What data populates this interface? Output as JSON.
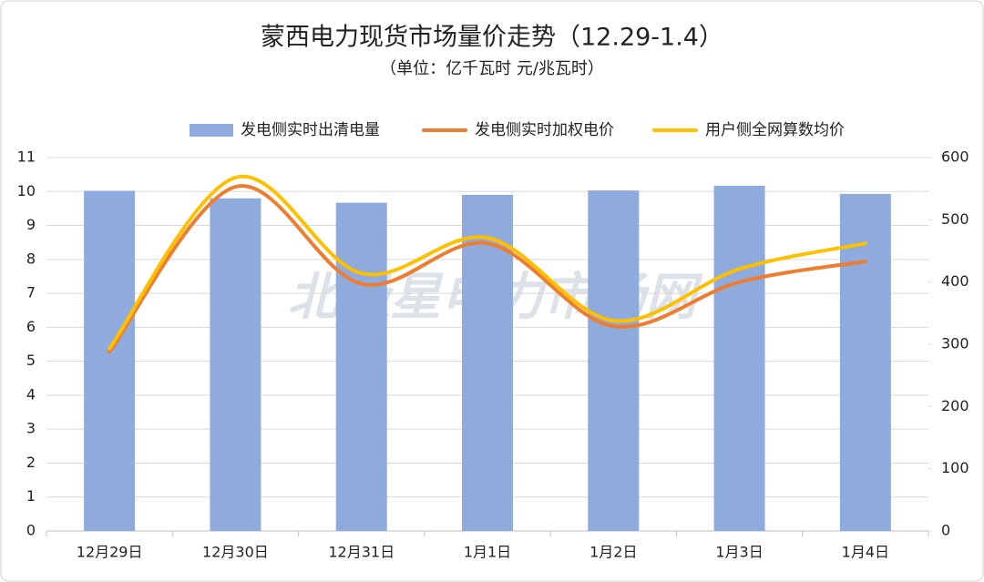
{
  "chart_data": {
    "type": "bar-line",
    "title": "蒙西电力现货市场量价走势（12.29-1.4）",
    "subtitle": "（单位：亿千瓦时 元/兆瓦时）",
    "watermark": "北极星电力市场网",
    "categories": [
      "12月29日",
      "12月30日",
      "12月31日",
      "1月1日",
      "1月2日",
      "1月3日",
      "1月4日"
    ],
    "series": [
      {
        "name": "发电侧实时出清电量",
        "type": "bar",
        "color": "#8faadc",
        "values": [
          10.02,
          9.8,
          9.67,
          9.9,
          10.03,
          10.17,
          9.93
        ]
      },
      {
        "name": "发电侧实时加权电价",
        "type": "line",
        "axis": "y2",
        "color": "#ed7d31",
        "values": [
          288,
          553,
          397,
          462,
          329,
          400,
          433
        ]
      },
      {
        "name": "用户侧全网算数均价",
        "type": "line",
        "axis": "y2",
        "color": "#ffc000",
        "values": [
          293,
          568,
          414,
          471,
          338,
          421,
          462
        ]
      }
    ],
    "ylim": [
      0,
      11
    ],
    "yticks": [
      0,
      1,
      2,
      3,
      4,
      5,
      6,
      7,
      8,
      9,
      10,
      11
    ],
    "y2lim": [
      0,
      600
    ],
    "y2ticks": [
      0,
      100,
      200,
      300,
      400,
      500,
      600
    ],
    "grid": true,
    "legend": "top"
  }
}
